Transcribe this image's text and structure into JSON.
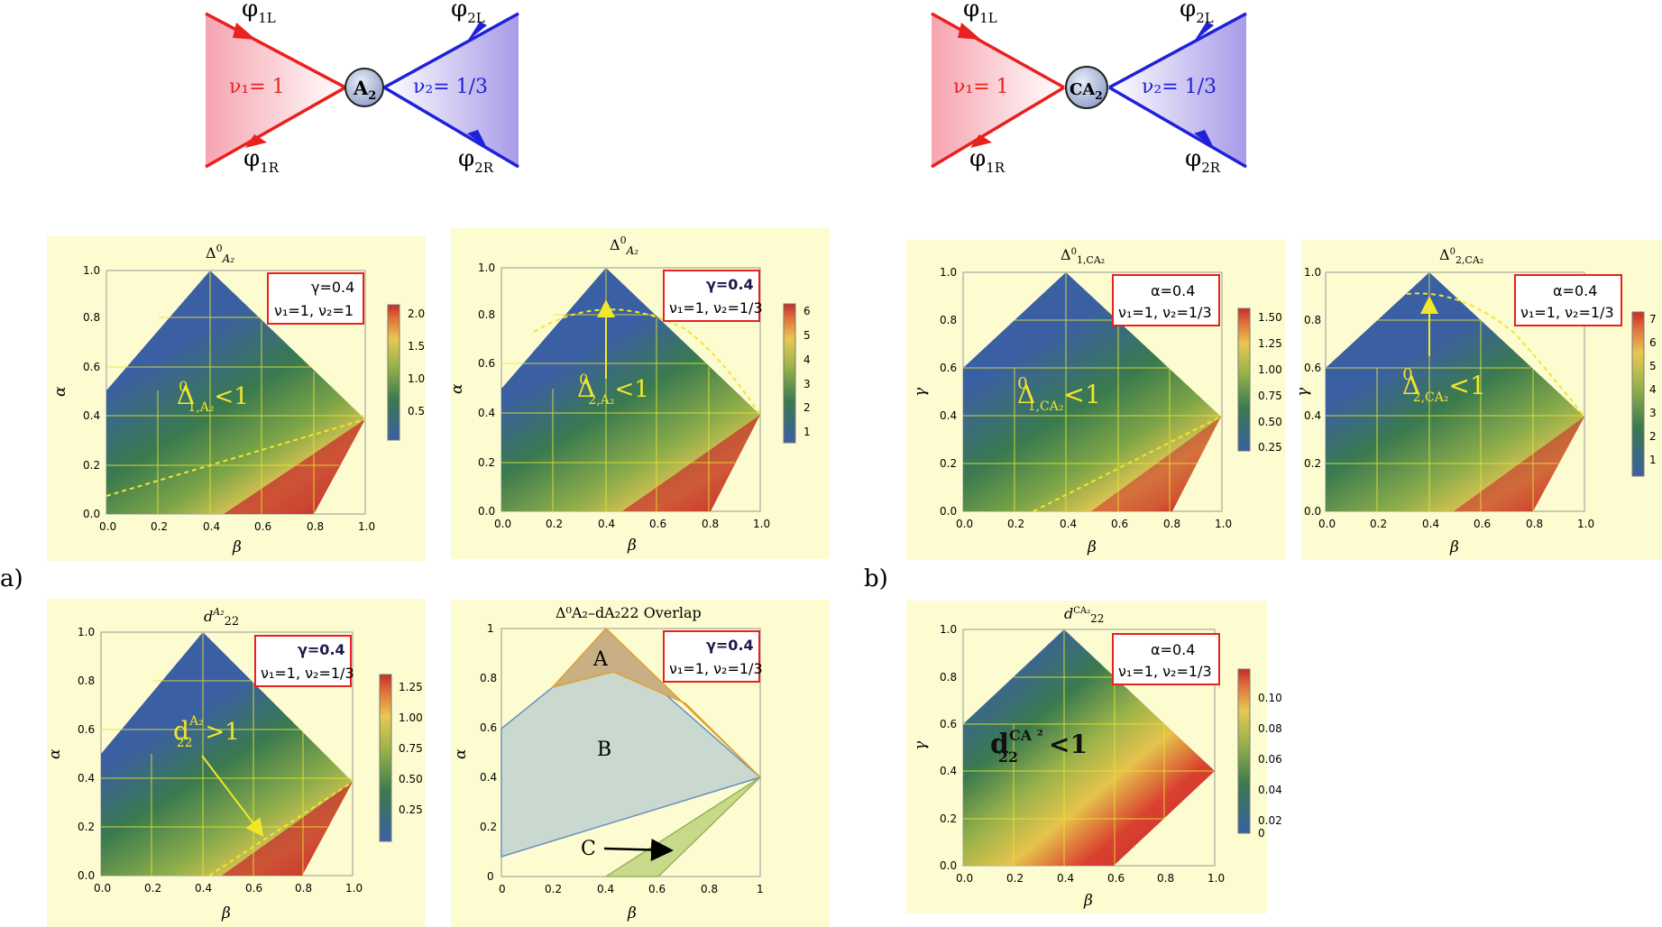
{
  "labels": {
    "a": "a)",
    "b": "b)"
  },
  "diagram_a": {
    "node": "A",
    "node_sub": "2",
    "left_nu": "ν₁= 1",
    "right_nu": "ν₂= 1/3",
    "phi1L": "φ",
    "phi1L_sub": "1L",
    "phi1R": "φ",
    "phi1R_sub": "1R",
    "phi2L": "φ",
    "phi2L_sub": "2L",
    "phi2R": "φ",
    "phi2R_sub": "2R"
  },
  "diagram_b": {
    "node": "CA",
    "node_sub": "2",
    "left_nu": "ν₁= 1",
    "right_nu": "ν₂= 1/3",
    "phi1L": "φ",
    "phi1L_sub": "1L",
    "phi1R": "φ",
    "phi1R_sub": "1R",
    "phi2L": "φ",
    "phi2L_sub": "2L",
    "phi2R": "φ",
    "phi2R_sub": "2R"
  },
  "panels": {
    "p1": {
      "title_main": "Δ",
      "title_sup": "0",
      "title_sub": "A₂",
      "box1": "γ=0.4",
      "box2": "ν₁=1, ν₂=1",
      "xlabel": "β",
      "ylabel": "α",
      "xticks": [
        "0.0",
        "0.2",
        "0.4",
        "0.6",
        "0.8",
        "1.0"
      ],
      "yticks": [
        "0.0",
        "0.2",
        "0.4",
        "0.6",
        "0.8",
        "1.0"
      ],
      "inner_main": "Δ",
      "inner_sup": "0",
      "inner_sub": "1,A₂",
      "inner_rel": "<1",
      "cbar": [
        "2.0",
        "1.5",
        "1.0",
        "0.5"
      ]
    },
    "p2": {
      "title_main": "Δ",
      "title_sup": "0",
      "title_sub": "A₂",
      "box1": "γ=0.4",
      "box2": "ν₁=1, ν₂=1/3",
      "xlabel": "β",
      "ylabel": "α",
      "xticks": [
        "0.0",
        "0.2",
        "0.4",
        "0.6",
        "0.8",
        "1.0"
      ],
      "yticks": [
        "0.0",
        "0.2",
        "0.4",
        "0.6",
        "0.8",
        "1.0"
      ],
      "inner_main": "Δ",
      "inner_sup": "0",
      "inner_sub": "2,A₂",
      "inner_rel": "<1",
      "cbar": [
        "6",
        "5",
        "4",
        "3",
        "2",
        "1"
      ]
    },
    "p3": {
      "title_main": "Δ",
      "title_sup": "0",
      "title_sub": "1,CA₂",
      "box1": "α=0.4",
      "box2": "ν₁=1, ν₂=1/3",
      "xlabel": "β",
      "ylabel": "γ",
      "xticks": [
        "0.0",
        "0.2",
        "0.4",
        "0.6",
        "0.8",
        "1.0"
      ],
      "yticks": [
        "0.0",
        "0.2",
        "0.4",
        "0.6",
        "0.8",
        "1.0"
      ],
      "inner_main": "Δ",
      "inner_sup": "0",
      "inner_sub": "1,CA₂",
      "inner_rel": "<1",
      "cbar": [
        "1.50",
        "1.25",
        "1.00",
        "0.75",
        "0.50",
        "0.25"
      ]
    },
    "p4": {
      "title_main": "Δ",
      "title_sup": "0",
      "title_sub": "2,CA₂",
      "box1": "α=0.4",
      "box2": "ν₁=1, ν₂=1/3",
      "xlabel": "β",
      "ylabel": "γ",
      "xticks": [
        "0.0",
        "0.2",
        "0.4",
        "0.6",
        "0.8",
        "1.0"
      ],
      "yticks": [
        "0.0",
        "0.2",
        "0.4",
        "0.6",
        "0.8",
        "1.0"
      ],
      "inner_main": "Δ",
      "inner_sup": "0",
      "inner_sub": "2,CA₂",
      "inner_rel": "<1",
      "cbar": [
        "7",
        "6",
        "5",
        "4",
        "3",
        "2",
        "1"
      ]
    },
    "p5": {
      "title_main": "d",
      "title_sup": "A₂",
      "title_sub": "22",
      "box1": "γ=0.4",
      "box2": "ν₁=1, ν₂=1/3",
      "xlabel": "β",
      "ylabel": "α",
      "xticks": [
        "0.0",
        "0.2",
        "0.4",
        "0.6",
        "0.8",
        "1.0"
      ],
      "yticks": [
        "0.0",
        "0.2",
        "0.4",
        "0.6",
        "0.8",
        "1.0"
      ],
      "inner_main": "d",
      "inner_sup": "A₂",
      "inner_sub": "22",
      "inner_rel": ">1",
      "cbar": [
        "1.25",
        "1.00",
        "0.75",
        "0.50",
        "0.25"
      ]
    },
    "p6": {
      "title": "Δ⁰A₂–dA₂22 Overlap",
      "box1": "γ=0.4",
      "box2": "ν₁=1, ν₂=1/3",
      "xlabel": "β",
      "ylabel": "α",
      "xticks": [
        "0",
        "0.2",
        "0.4",
        "0.6",
        "0.8",
        "1"
      ],
      "yticks": [
        "0",
        "0.2",
        "0.4",
        "0.6",
        "0.8",
        "1"
      ],
      "region_a": "A",
      "region_b": "B",
      "region_c": "C"
    },
    "p7": {
      "title_main": "d",
      "title_sup": "CA₂",
      "title_sub": "22",
      "box1": "α=0.4",
      "box2": "ν₁=1, ν₂=1/3",
      "xlabel": "β",
      "ylabel": "γ",
      "xticks": [
        "0.0",
        "0.2",
        "0.4",
        "0.6",
        "0.8",
        "1.0"
      ],
      "yticks": [
        "0.0",
        "0.2",
        "0.4",
        "0.6",
        "0.8",
        "1.0"
      ],
      "inner_main": "d",
      "inner_sup": "CA ²",
      "inner_sub": "22",
      "inner_rel": "<1",
      "cbar": [
        "0.10",
        "0.08",
        "0.06",
        "0.04",
        "0.02",
        "0"
      ]
    }
  },
  "colors": {
    "red": "#e8201e",
    "blue": "#2020d8",
    "yellow": "#f2e62a",
    "panel": "#fcfcd0"
  }
}
